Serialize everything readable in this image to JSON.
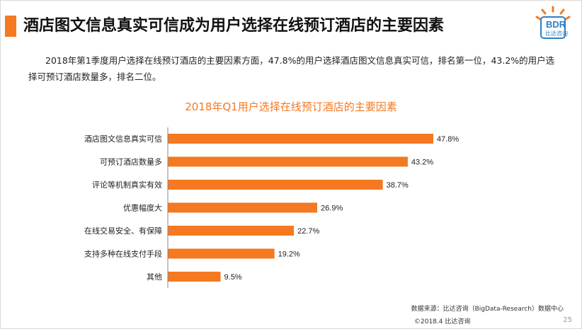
{
  "header": {
    "title": "酒店图文信息真实可信成为用户选择在线预订酒店的主要因素",
    "logo_text": "BDR",
    "logo_sub": "比达咨询"
  },
  "description": "2018年第1季度用户选择在线预订酒店的主要因素方面，47.8%的用户选择酒店图文信息真实可信，排名第一位，43.2%的用户选择可预订酒店数量多，排名二位。",
  "chart_data": {
    "type": "bar",
    "orientation": "horizontal",
    "title": "2018年Q1用户选择在线预订酒店的主要因素",
    "categories": [
      "酒店图文信息真实可信",
      "可预订酒店数量多",
      "评论等机制真实有效",
      "优惠幅度大",
      "在线交易安全、有保障",
      "支持多种在线支付手段",
      "其他"
    ],
    "values": [
      47.8,
      43.2,
      38.7,
      26.9,
      22.7,
      19.2,
      9.5
    ],
    "value_labels": [
      "47.8%",
      "43.2%",
      "38.7%",
      "26.9%",
      "22.7%",
      "19.2%",
      "9.5%"
    ],
    "bar_color": "#f47920",
    "xlim": [
      0,
      50
    ],
    "grid": false
  },
  "footer": {
    "source": "数据来源：比达咨询（BigData-Research）数据中心",
    "copyright": "©2018.4 比达咨询",
    "page": "25"
  },
  "colors": {
    "accent": "#f47920",
    "logo_blue": "#2e7ec7"
  }
}
